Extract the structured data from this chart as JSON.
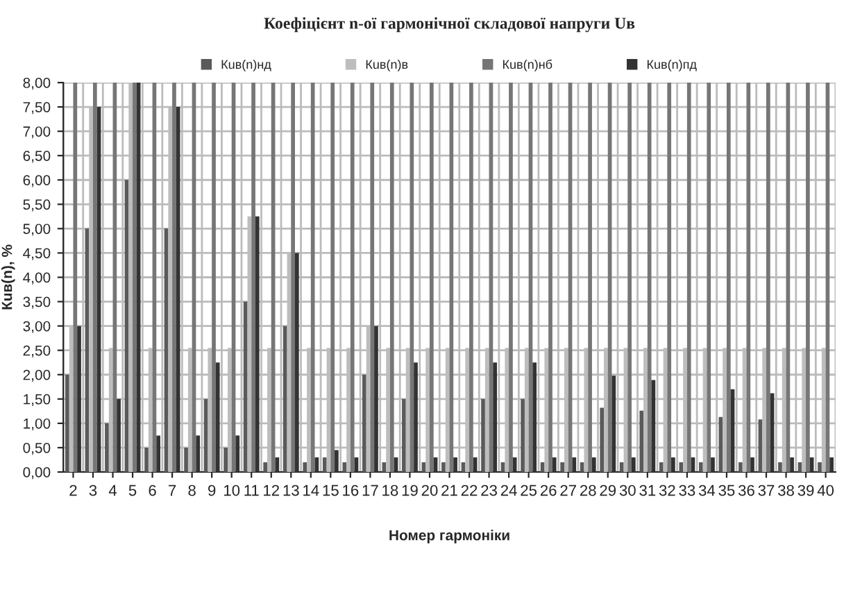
{
  "chart_data": {
    "type": "bar",
    "title": "Коефіцієнт n-ої гармонічної складової напруги Uв",
    "xlabel": "Номер гармоніки",
    "ylabel": "Кuв(n), %",
    "categories": [
      "2",
      "3",
      "4",
      "5",
      "6",
      "7",
      "8",
      "9",
      "10",
      "11",
      "12",
      "13",
      "14",
      "15",
      "16",
      "17",
      "18",
      "19",
      "20",
      "21",
      "22",
      "23",
      "24",
      "25",
      "26",
      "27",
      "28",
      "29",
      "30",
      "31",
      "32",
      "33",
      "34",
      "35",
      "36",
      "37",
      "38",
      "39",
      "40"
    ],
    "series": [
      {
        "name": "Кuв(n)нд",
        "color": "#5a5a5a",
        "values": [
          2,
          5,
          1,
          6,
          0.5,
          5,
          0.5,
          1.5,
          0.5,
          3.5,
          0.2,
          3,
          0.2,
          0.3,
          0.2,
          2,
          0.2,
          1.5,
          0.2,
          0.2,
          0.2,
          1.5,
          0.2,
          1.5,
          0.2,
          0.2,
          0.2,
          1.32,
          0.2,
          1.26,
          0.2,
          0.2,
          0.2,
          1.13,
          0.2,
          1.08,
          0.2,
          0.2,
          0.2
        ]
      },
      {
        "name": "Кuв(n)в",
        "color": "#bdbdbd",
        "values": [
          3,
          7.5,
          2.55,
          8,
          2.55,
          7.5,
          2.55,
          2.55,
          2.55,
          5.25,
          2.55,
          4.5,
          2.55,
          2.55,
          2.55,
          3,
          2.55,
          2.55,
          2.55,
          2.55,
          2.55,
          2.55,
          2.55,
          2.55,
          2.55,
          2.55,
          2.55,
          2.55,
          2.55,
          2.55,
          2.55,
          2.55,
          2.55,
          2.55,
          2.55,
          2.55,
          2.55,
          2.55,
          2.55
        ]
      },
      {
        "name": "Кuв(n)нб",
        "color": "#767676",
        "values": [
          8,
          8,
          8,
          8,
          8,
          8,
          8,
          8,
          8,
          8,
          8,
          8,
          8,
          8,
          8,
          8,
          8,
          8,
          8,
          8,
          8,
          8,
          8,
          8,
          8,
          8,
          8,
          8,
          8,
          8,
          8,
          8,
          8,
          8,
          8,
          8,
          8,
          8,
          8
        ]
      },
      {
        "name": "Кuв(n)пд",
        "color": "#333333",
        "values": [
          3,
          7.5,
          1.5,
          8,
          0.75,
          7.5,
          0.75,
          2.25,
          0.75,
          5.25,
          0.3,
          4.5,
          0.3,
          0.45,
          0.3,
          3,
          0.3,
          2.25,
          0.3,
          0.3,
          0.3,
          2.25,
          0.3,
          2.25,
          0.3,
          0.3,
          0.3,
          1.98,
          0.3,
          1.89,
          0.3,
          0.3,
          0.3,
          1.7,
          0.3,
          1.62,
          0.3,
          0.3,
          0.3
        ]
      }
    ],
    "ylim": [
      0,
      8
    ],
    "yticks": [
      {
        "value": 0,
        "label": "0,00"
      },
      {
        "value": 0.5,
        "label": "0,50"
      },
      {
        "value": 1,
        "label": "1,00"
      },
      {
        "value": 1.5,
        "label": "1,50"
      },
      {
        "value": 2,
        "label": "2,00"
      },
      {
        "value": 2.5,
        "label": "2,50"
      },
      {
        "value": 3,
        "label": "3,00"
      },
      {
        "value": 3.5,
        "label": "3,50"
      },
      {
        "value": 4,
        "label": "4,00"
      },
      {
        "value": 4.5,
        "label": "4,50"
      },
      {
        "value": 5,
        "label": "5,00"
      },
      {
        "value": 5.5,
        "label": "5,50"
      },
      {
        "value": 6,
        "label": "6,00"
      },
      {
        "value": 6.5,
        "label": "6,50"
      },
      {
        "value": 7,
        "label": "7,00"
      },
      {
        "value": 7.5,
        "label": "7,50"
      },
      {
        "value": 8,
        "label": "8,00"
      }
    ],
    "grid": true,
    "legend": "top"
  }
}
